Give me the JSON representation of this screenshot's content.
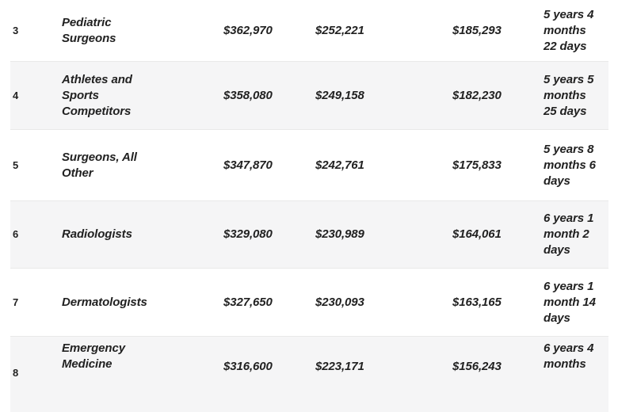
{
  "chart_data": {
    "type": "table",
    "headers_visible": false,
    "rows": [
      {
        "rank": "3",
        "occupation": "Pediatric Surgeons",
        "salary_1": "$362,970",
        "salary_2": "$252,221",
        "salary_3": "$185,293",
        "duration": "5 years 4 months 22 days"
      },
      {
        "rank": "4",
        "occupation": "Athletes and Sports Competitors",
        "salary_1": "$358,080",
        "salary_2": "$249,158",
        "salary_3": "$182,230",
        "duration": "5 years 5 months 25 days"
      },
      {
        "rank": "5",
        "occupation": "Surgeons, All Other",
        "salary_1": "$347,870",
        "salary_2": "$242,761",
        "salary_3": "$175,833",
        "duration": "5 years 8 months 6 days"
      },
      {
        "rank": "6",
        "occupation": "Radiologists",
        "salary_1": "$329,080",
        "salary_2": "$230,989",
        "salary_3": "$164,061",
        "duration": "6 years 1 month 2 days"
      },
      {
        "rank": "7",
        "occupation": "Dermatologists",
        "salary_1": "$327,650",
        "salary_2": "$230,093",
        "salary_3": "$163,165",
        "duration": "6 years 1 month 14 days"
      },
      {
        "rank": "8",
        "occupation": "Emergency Medicine",
        "salary_1": "$316,600",
        "salary_2": "$223,171",
        "salary_3": "$156,243",
        "duration": "6 years 4 months"
      }
    ]
  },
  "style": {
    "row_bg": "#ffffff",
    "row_alt_bg": "#f5f5f6",
    "text_color": "#212121",
    "divider_color": "#e9e9e9"
  }
}
